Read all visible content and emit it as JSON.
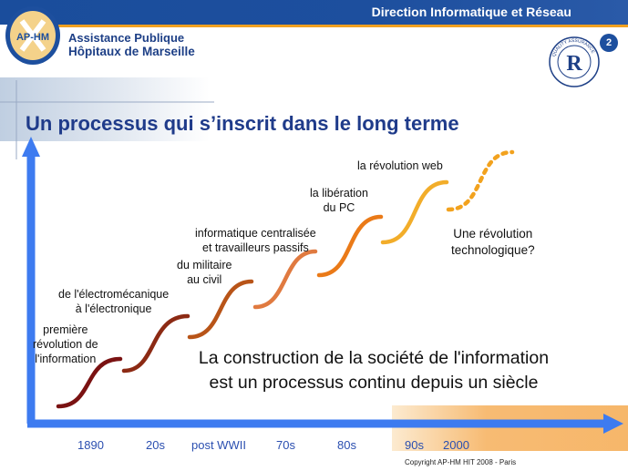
{
  "header": {
    "bar_text": "Direction Informatique et Réseau",
    "logo_text": "AP-HM",
    "org_line1": "Assistance Publique",
    "org_line2": "Hôpitaux de Marseille",
    "cert_label": "QUALITY ASSURANCE",
    "page_number": "2"
  },
  "slide": {
    "title": "Un processus qui s’inscrit dans le long terme",
    "statement_line1": "La construction de la société de l'information",
    "statement_line2": "est un processus continu depuis un siècle",
    "copyright": "Copyright AP-HM   HIT  2008 - Paris"
  },
  "steps": [
    {
      "line1": "première",
      "line2": "révolution de",
      "line3": "l'information"
    },
    {
      "line1": "de l'électromécanique",
      "line2": "à l'électronique"
    },
    {
      "line1": "du militaire",
      "line2": "au civil"
    },
    {
      "line1": "informatique centralisée",
      "line2": "et travailleurs passifs"
    },
    {
      "line1": "la libération",
      "line2": "du PC"
    },
    {
      "line1": "la révolution web"
    },
    {
      "line1": "Une révolution",
      "line2": "technologique?"
    }
  ],
  "axis_ticks": [
    "1890",
    "20s",
    "post WWII",
    "70s",
    "80s",
    "90s",
    "2000"
  ],
  "colors": {
    "header_blue": "#1d4f9e",
    "accent_orange": "#f0a020",
    "title_blue": "#1f3b8a",
    "axis_blue": "#3d7bf0"
  }
}
